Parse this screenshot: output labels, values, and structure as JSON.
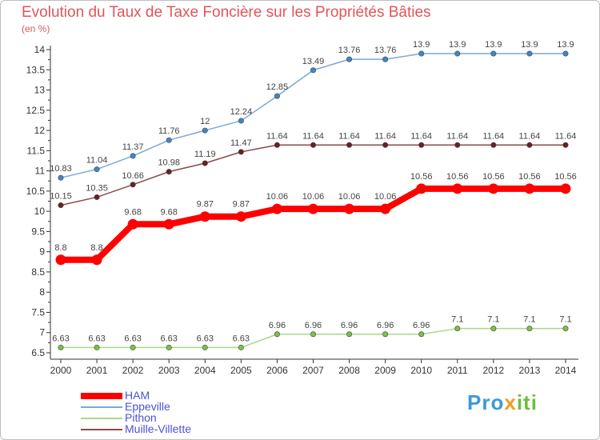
{
  "title": "Evolution du Taux de Taxe Foncière sur les Propriétés Bâties",
  "unit_label": "(en %)",
  "logo": {
    "part1": "Pro",
    "part2": "x",
    "part3": "iti"
  },
  "chart_data": {
    "type": "line",
    "title": "Evolution du Taux de Taxe Foncière sur les Propriétés Bâties",
    "ylabel": "(en %)",
    "xlabel": "",
    "x": [
      "2000",
      "2001",
      "2002",
      "2003",
      "2004",
      "2005",
      "2006",
      "2007",
      "2008",
      "2009",
      "2010",
      "2011",
      "2012",
      "2013",
      "2014"
    ],
    "ylim": [
      6.5,
      14
    ],
    "yticks": [
      "6.5",
      "7",
      "7.5",
      "8",
      "8.5",
      "9",
      "9.5",
      "10",
      "10.5",
      "11",
      "11.5",
      "12",
      "12.5",
      "13",
      "13.5",
      "14"
    ],
    "legend_position": "bottom-left",
    "grid": false,
    "series": [
      {
        "name": "HAM",
        "color": "#ff0000",
        "marker_color": "#ff0000",
        "thick": true,
        "values": [
          8.8,
          8.8,
          9.68,
          9.68,
          9.87,
          9.87,
          10.06,
          10.06,
          10.06,
          10.06,
          10.56,
          10.56,
          10.56,
          10.56,
          10.56
        ],
        "labels": [
          "8.8",
          "8.8",
          "9.68",
          "9.68",
          "9.87",
          "9.87",
          "10.06",
          "10.06",
          "10.06",
          "10.06",
          "10.56",
          "10.56",
          "10.56",
          "10.56",
          "10.56"
        ]
      },
      {
        "name": "Eppeville",
        "color": "#7aa9d6",
        "marker_color": "#3f86c8",
        "thick": false,
        "values": [
          10.83,
          11.04,
          11.37,
          11.76,
          12,
          12.24,
          12.85,
          13.49,
          13.76,
          13.76,
          13.9,
          13.9,
          13.9,
          13.9,
          13.9
        ],
        "labels": [
          "10.83",
          "11.04",
          "11.37",
          "11.76",
          "12",
          "12.24",
          "12.85",
          "13.49",
          "13.76",
          "13.76",
          "13.9",
          "13.9",
          "13.9",
          "13.9",
          "13.9"
        ]
      },
      {
        "name": "Pithon",
        "color": "#a8d888",
        "marker_color": "#7cc243",
        "thick": false,
        "values": [
          6.63,
          6.63,
          6.63,
          6.63,
          6.63,
          6.63,
          6.96,
          6.96,
          6.96,
          6.96,
          6.96,
          7.1,
          7.1,
          7.1,
          7.1
        ],
        "labels": [
          "6.63",
          "6.63",
          "6.63",
          "6.63",
          "6.63",
          "6.63",
          "6.96",
          "6.96",
          "6.96",
          "6.96",
          "6.96",
          "7.1",
          "7.1",
          "7.1",
          "7.1"
        ]
      },
      {
        "name": "Muille-Villette",
        "color": "#8a4b4b",
        "marker_color": "#6b1f1f",
        "thick": false,
        "values": [
          10.15,
          10.35,
          10.66,
          10.98,
          11.19,
          11.47,
          11.64,
          11.64,
          11.64,
          11.64,
          11.64,
          11.64,
          11.64,
          11.64,
          11.64
        ],
        "labels": [
          "10.15",
          "10.35",
          "10.66",
          "10.98",
          "11.19",
          "11.47",
          "11.64",
          "11.64",
          "11.64",
          "11.64",
          "11.64",
          "11.64",
          "11.64",
          "11.64",
          "11.64"
        ]
      }
    ]
  }
}
